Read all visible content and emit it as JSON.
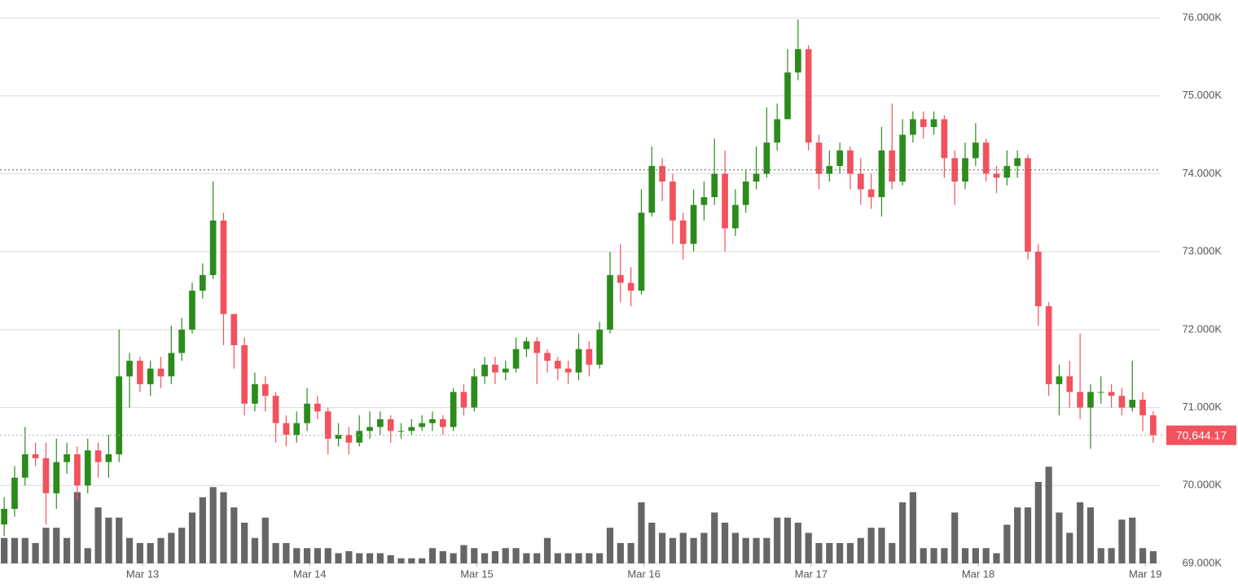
{
  "chart_data": {
    "type": "candlestick",
    "up_color": "#2b8c1c",
    "down_color": "#f2525d",
    "volume_color": "#666666",
    "grid": true,
    "open": [
      69500,
      69700,
      70100,
      70400,
      70350,
      69900,
      70300,
      70400,
      70000,
      70450,
      70300,
      70400,
      71400,
      71600,
      71300,
      71500,
      71400,
      71700,
      72000,
      72500,
      72700,
      73400,
      72200,
      71800,
      71050,
      71300,
      71150,
      70800,
      70650,
      70800,
      71050,
      70950,
      70600,
      70650,
      70550,
      70700,
      70750,
      70850,
      70700,
      70700,
      70750,
      70800,
      70850,
      70750,
      71200,
      71000,
      71400,
      71550,
      71450,
      71500,
      71750,
      71850,
      71700,
      71600,
      71500,
      71450,
      71750,
      71550,
      72000,
      72700,
      72600,
      72500,
      73500,
      74100,
      73900,
      73400,
      73100,
      73600,
      73700,
      74000,
      73300,
      73600,
      73900,
      74000,
      74400,
      74700,
      75300,
      75600,
      74400,
      74000,
      74100,
      74300,
      74000,
      73800,
      73700,
      74300,
      73900,
      74500,
      74700,
      74600,
      74700,
      74200,
      73900,
      74200,
      74400,
      74000,
      73950,
      74100,
      74200,
      73000,
      72300,
      71300,
      71400,
      71200,
      71000,
      71200,
      71200,
      71150,
      71000,
      71100,
      70900
    ],
    "high": [
      69850,
      70250,
      70750,
      70550,
      70550,
      70600,
      70550,
      70500,
      70600,
      70550,
      70650,
      72000,
      71700,
      71650,
      71600,
      71650,
      72050,
      72150,
      72600,
      72850,
      73900,
      73500,
      72200,
      71900,
      71450,
      71400,
      71200,
      70900,
      70950,
      71250,
      71150,
      71000,
      70800,
      70750,
      70900,
      70950,
      70950,
      70900,
      70800,
      70850,
      70900,
      70950,
      70900,
      71250,
      71300,
      71500,
      71650,
      71650,
      71600,
      71900,
      71900,
      71900,
      71750,
      71650,
      71600,
      71950,
      71850,
      72100,
      73000,
      73100,
      72800,
      73800,
      74350,
      74200,
      74000,
      73500,
      73800,
      73900,
      74450,
      74300,
      73800,
      74050,
      74350,
      74850,
      74900,
      75600,
      75980,
      75650,
      74500,
      74300,
      74400,
      74350,
      74200,
      74000,
      74600,
      74900,
      74700,
      74800,
      74800,
      74800,
      74750,
      74300,
      74400,
      74650,
      74450,
      74100,
      74300,
      74300,
      74250,
      73100,
      72350,
      71550,
      71600,
      71950,
      71300,
      71400,
      71300,
      71250,
      71600,
      71200,
      70950
    ],
    "low": [
      69350,
      69600,
      70000,
      70250,
      69500,
      69700,
      70150,
      69800,
      69900,
      70100,
      70100,
      70300,
      71000,
      71200,
      71150,
      71250,
      71300,
      71600,
      71950,
      72400,
      72650,
      71800,
      71500,
      70900,
      70950,
      70950,
      70550,
      70500,
      70550,
      70700,
      70850,
      70400,
      70500,
      70400,
      70500,
      70600,
      70650,
      70550,
      70600,
      70650,
      70700,
      70700,
      70650,
      70700,
      70900,
      70950,
      71300,
      71300,
      71350,
      71450,
      71650,
      71300,
      71450,
      71350,
      71300,
      71350,
      71400,
      71500,
      71950,
      72350,
      72300,
      72450,
      73450,
      73650,
      73100,
      72900,
      73000,
      73400,
      73600,
      73000,
      73200,
      73500,
      73800,
      73950,
      74300,
      74700,
      75200,
      74300,
      73800,
      73900,
      74000,
      73800,
      73600,
      73550,
      73450,
      73800,
      73850,
      74400,
      74450,
      74500,
      73950,
      73600,
      73800,
      74100,
      73900,
      73750,
      73850,
      73950,
      72900,
      72050,
      71150,
      70900,
      71000,
      70850,
      70470,
      71050,
      71000,
      70900,
      70950,
      70700,
      70550
    ],
    "close": [
      69700,
      70100,
      70400,
      70350,
      69900,
      70300,
      70400,
      70000,
      70450,
      70300,
      70400,
      71400,
      71600,
      71300,
      71500,
      71400,
      71700,
      72000,
      72500,
      72700,
      73400,
      72200,
      71800,
      71050,
      71300,
      71150,
      70800,
      70650,
      70800,
      71050,
      70950,
      70600,
      70650,
      70550,
      70700,
      70750,
      70850,
      70700,
      70700,
      70750,
      70800,
      70850,
      70750,
      71200,
      71000,
      71400,
      71550,
      71450,
      71500,
      71750,
      71850,
      71700,
      71600,
      71500,
      71450,
      71750,
      71550,
      72000,
      72700,
      72600,
      72500,
      73500,
      74100,
      73900,
      73400,
      73100,
      73600,
      73700,
      74000,
      73300,
      73600,
      73900,
      74000,
      74400,
      74700,
      75300,
      75600,
      74400,
      74000,
      74100,
      74300,
      74000,
      73800,
      73700,
      74300,
      73900,
      74500,
      74700,
      74600,
      74700,
      74200,
      73900,
      74200,
      74400,
      74000,
      73950,
      74100,
      74200,
      73000,
      72300,
      71300,
      71400,
      71200,
      71000,
      71200,
      71200,
      71150,
      71000,
      71100,
      70900,
      70644.17
    ],
    "volume": [
      25,
      25,
      25,
      20,
      35,
      35,
      25,
      70,
      15,
      55,
      45,
      45,
      25,
      20,
      20,
      25,
      30,
      35,
      50,
      65,
      75,
      70,
      55,
      40,
      25,
      45,
      20,
      20,
      15,
      15,
      15,
      15,
      10,
      12,
      10,
      10,
      10,
      8,
      5,
      5,
      5,
      15,
      12,
      10,
      18,
      15,
      10,
      12,
      15,
      15,
      10,
      10,
      25,
      10,
      10,
      10,
      10,
      10,
      35,
      20,
      20,
      60,
      40,
      30,
      25,
      30,
      25,
      30,
      50,
      40,
      30,
      25,
      25,
      25,
      45,
      45,
      40,
      30,
      20,
      20,
      20,
      20,
      25,
      35,
      35,
      20,
      60,
      70,
      15,
      15,
      15,
      50,
      15,
      15,
      15,
      10,
      38,
      55,
      55,
      80,
      95,
      50,
      30,
      60,
      55,
      15,
      15,
      43,
      45,
      15,
      12
    ],
    "vlim": [
      0,
      100
    ],
    "last_price": {
      "value": 70644.17,
      "label": "70,644.17"
    },
    "reference_price": 74050,
    "xlim": [
      -0.4,
      111.1
    ],
    "xticks": [
      {
        "value": 13.25,
        "label": "Mar 13"
      },
      {
        "value": 29.25,
        "label": "Mar 14"
      },
      {
        "value": 45.25,
        "label": "Mar 15"
      },
      {
        "value": 61.25,
        "label": "Mar 16"
      },
      {
        "value": 77.25,
        "label": "Mar 17"
      },
      {
        "value": 93.25,
        "label": "Mar 18"
      },
      {
        "value": 109.25,
        "label": "Mar 19"
      }
    ],
    "ylim": [
      69000,
      76000
    ],
    "yticks": [
      {
        "value": 69000,
        "label": "69.000K"
      },
      {
        "value": 70000,
        "label": "70.000K"
      },
      {
        "value": 71000,
        "label": "71.000K"
      },
      {
        "value": 72000,
        "label": "72.000K"
      },
      {
        "value": 73000,
        "label": "73.000K"
      },
      {
        "value": 74000,
        "label": "74.000K"
      },
      {
        "value": 75000,
        "label": "75.000K"
      },
      {
        "value": 76000,
        "label": "76.000K"
      }
    ]
  }
}
